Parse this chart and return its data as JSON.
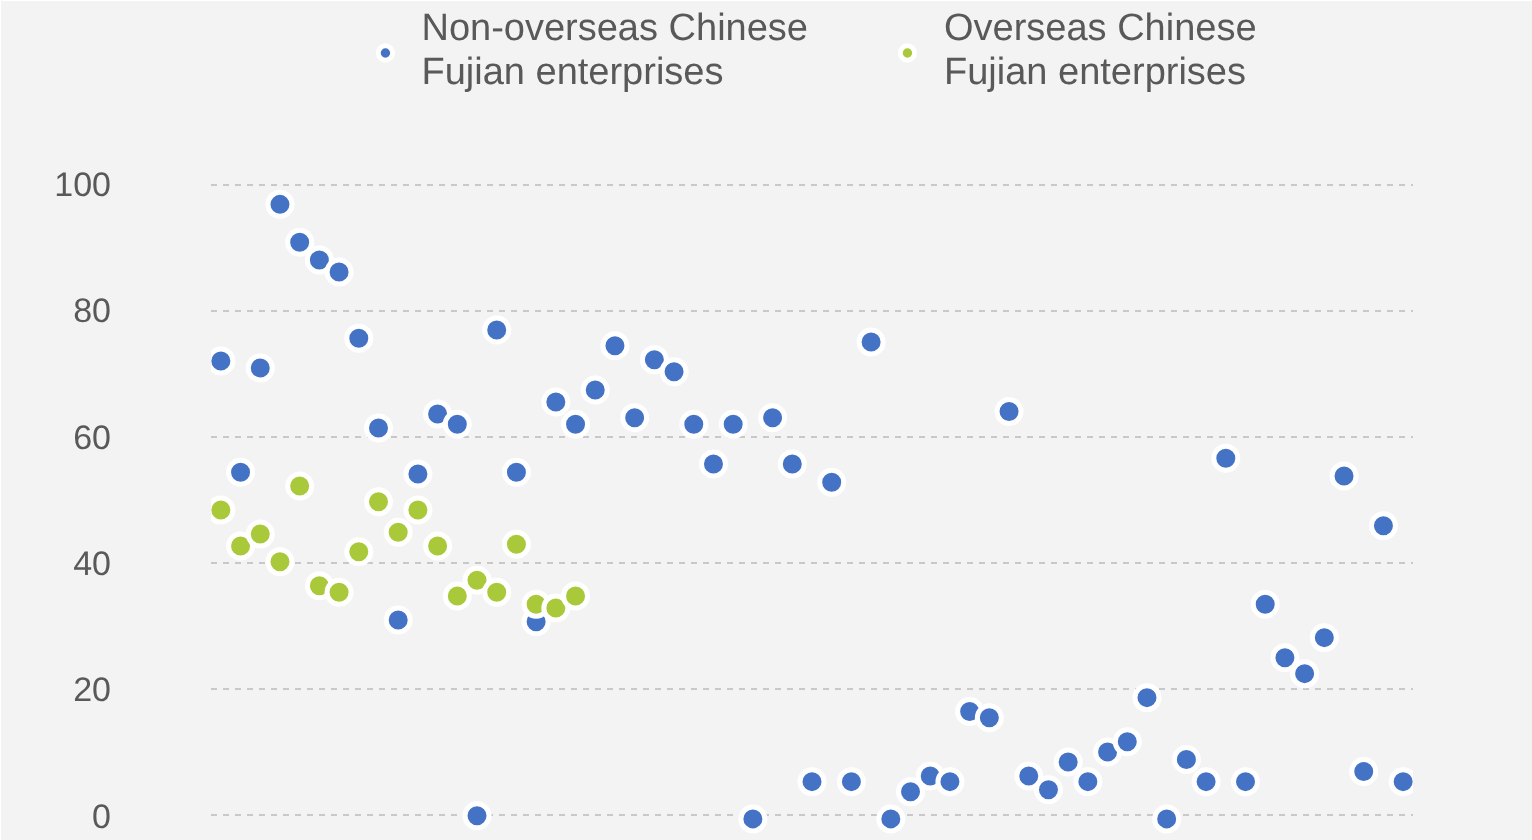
{
  "chart_data": {
    "type": "scatter",
    "categories": [
      null,
      null,
      null,
      null,
      null,
      null,
      null,
      null,
      null,
      null,
      null,
      null,
      null,
      null,
      null,
      null,
      null,
      null,
      null,
      null,
      null,
      null,
      null,
      null,
      null,
      null,
      null,
      null,
      null,
      null,
      null,
      null,
      null,
      null,
      null,
      null,
      null,
      null,
      null,
      null,
      null,
      null,
      null,
      null,
      null,
      null,
      null,
      null,
      null,
      null,
      null,
      null,
      null,
      null,
      null,
      null,
      null,
      null,
      null,
      null,
      null
    ],
    "ylim": [
      -4,
      129
    ],
    "yticks": [
      0,
      20,
      40,
      60,
      80,
      100
    ],
    "grid": "y",
    "legend": "top",
    "marker": "circle",
    "series": [
      {
        "name": "Non-overseas Chinese\nFujian enterprises",
        "color": "#4472c4",
        "values": [
          72,
          54.4,
          70.9,
          96.8,
          90.8,
          88,
          86.1,
          75.6,
          61.4,
          31,
          54.1,
          63.6,
          62,
          0,
          76.9,
          54.4,
          30.7,
          65.5,
          62,
          67.4,
          74.4,
          63,
          72.2,
          70.3,
          62,
          55.7,
          62,
          -0.5,
          63,
          55.7,
          5.4,
          52.8,
          5.4,
          75,
          -0.5,
          3.8,
          6.3,
          5.4,
          16.5,
          15.5,
          64,
          6.3,
          4.1,
          8.5,
          5.4,
          10.1,
          11.7,
          18.7,
          -0.5,
          8.9,
          5.4,
          56.6,
          5.4,
          33.5,
          25,
          22.5,
          28.2,
          53.8,
          7,
          45.9,
          5.4
        ]
      },
      {
        "name": "Overseas Chinese\nFujian enterprises",
        "color": "#a9c93a",
        "values": [
          48.4,
          42.7,
          44.6,
          40.2,
          52.2,
          36.4,
          35.4,
          41.8,
          49.7,
          44.9,
          48.4,
          42.7,
          34.8,
          37.3,
          35.4,
          43,
          33.5,
          32.9,
          34.8,
          null,
          null,
          null,
          null,
          null,
          null,
          null,
          null,
          null,
          null,
          null,
          null,
          null,
          null,
          null,
          null,
          null,
          null,
          null,
          null,
          null,
          null,
          null,
          null,
          null,
          null,
          null,
          null,
          null,
          null,
          null,
          null,
          null,
          null,
          null,
          null,
          null,
          null,
          null,
          null,
          null,
          null
        ]
      }
    ]
  }
}
